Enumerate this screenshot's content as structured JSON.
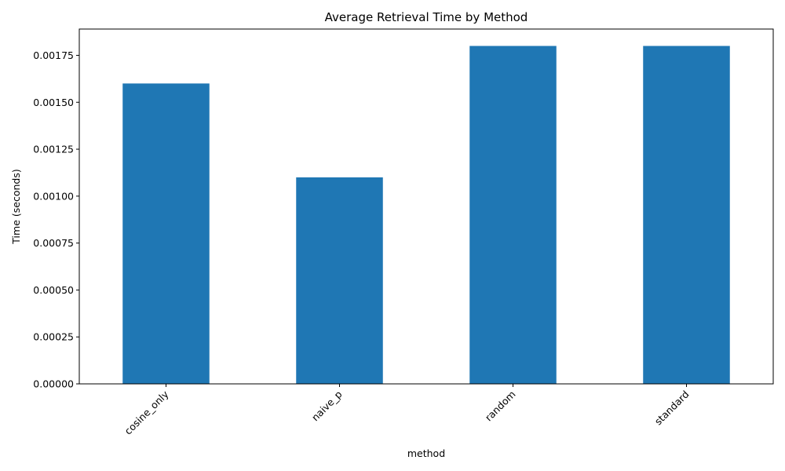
{
  "chart_data": {
    "type": "bar",
    "title": "Average Retrieval Time by Method",
    "xlabel": "method",
    "ylabel": "Time (seconds)",
    "categories": [
      "cosine_only",
      "naive_p",
      "random",
      "standard"
    ],
    "values": [
      0.0016,
      0.0011,
      0.0018,
      0.0018
    ],
    "ylim": [
      0,
      0.00189
    ],
    "yticks": [
      "0.00000",
      "0.00025",
      "0.00050",
      "0.00075",
      "0.00100",
      "0.00125",
      "0.00150",
      "0.00175"
    ],
    "ytick_values": [
      0,
      0.00025,
      0.0005,
      0.00075,
      0.001,
      0.00125,
      0.0015,
      0.00175
    ],
    "bar_color": "#1f77b4",
    "grid": false,
    "legend": "none"
  }
}
